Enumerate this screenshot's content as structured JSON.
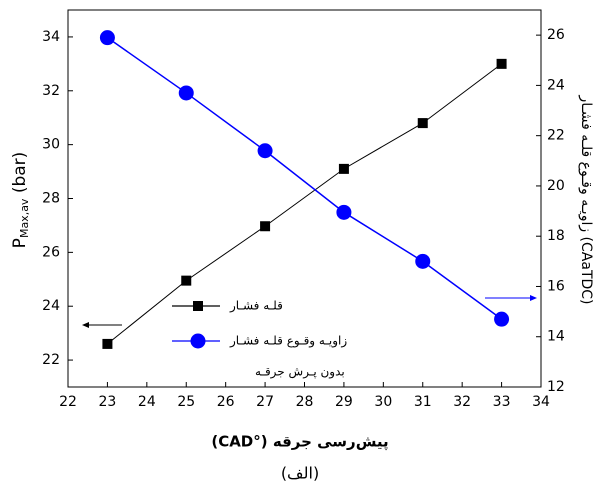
{
  "chart_data": {
    "type": "line",
    "x": [
      23,
      25,
      27,
      29,
      31,
      33
    ],
    "xlim": [
      22,
      34
    ],
    "xticks": [
      22,
      23,
      24,
      25,
      26,
      27,
      28,
      29,
      30,
      31,
      32,
      33,
      34
    ],
    "ylim": [
      21,
      35
    ],
    "yticks": [
      22,
      24,
      26,
      28,
      30,
      32,
      34
    ],
    "y2lim": [
      12,
      27
    ],
    "y2ticks": [
      12,
      14,
      16,
      18,
      20,
      22,
      24,
      26
    ],
    "x_label": "پیش‌رسی جرقه (°CAD)",
    "y_label": {
      "main": "P",
      "sub": "Max,av",
      "unit": " (bar)"
    },
    "y2_label": "زاویـه وقـوع قلـه فشـار (CAaTDC)",
    "annotation": "بدون پـرش جرقـه",
    "caption": "(الف)",
    "series": [
      {
        "name": "قلـه فشـار",
        "color": "#000000",
        "marker": "square",
        "values": [
          22.6,
          24.95,
          26.97,
          29.1,
          30.8,
          33.0
        ]
      },
      {
        "name": "زاویـه وقـوع قلـه فشـار",
        "color": "#0000ff",
        "marker": "circle",
        "axis": "y2",
        "values": [
          25.9,
          23.7,
          21.4,
          18.95,
          17.0,
          14.7
        ]
      }
    ]
  }
}
